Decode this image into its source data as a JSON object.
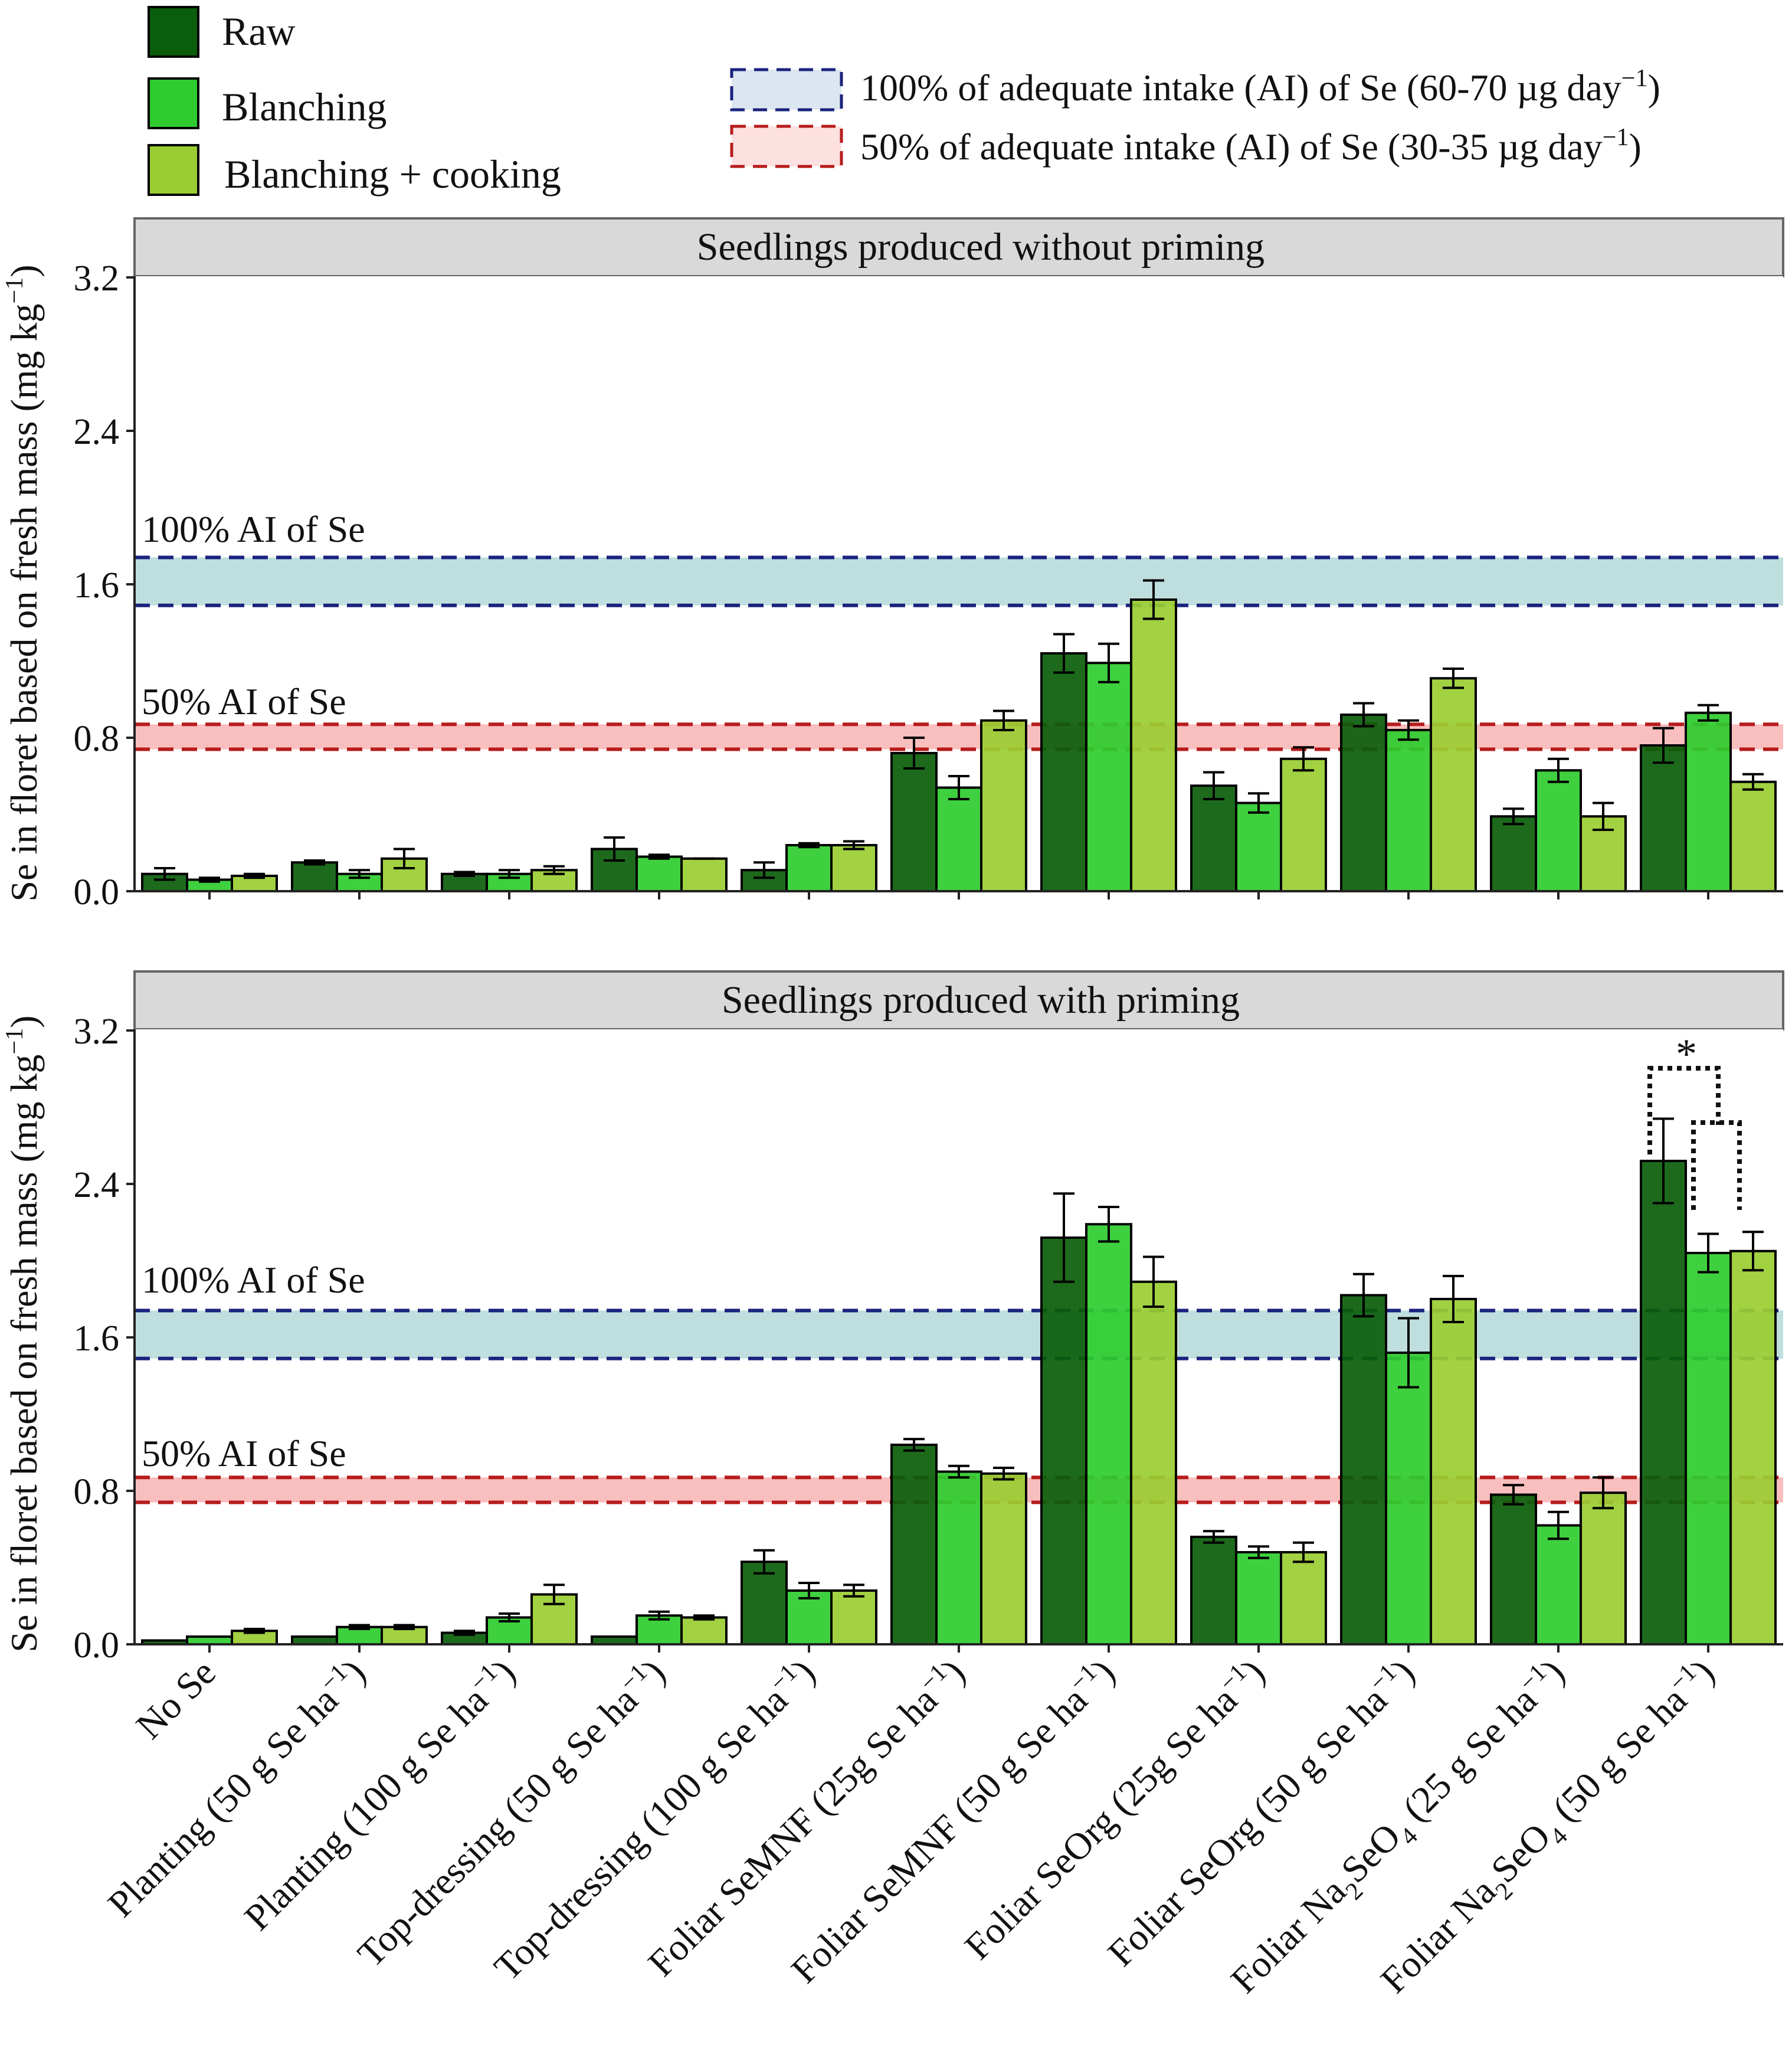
{
  "legend": {
    "series": [
      {
        "name": "Raw",
        "color": "#0a5d0a"
      },
      {
        "name": "Blanching",
        "color": "#2ecc2e"
      },
      {
        "name": "Blanching + cooking",
        "color": "#9acd32"
      }
    ],
    "bands": [
      {
        "label": "100% of adequate intake (AI) of Se (60-70 µg day",
        "exp": "−1",
        "close": ")",
        "fill": "#dbe6f0",
        "stroke": "#1a237e"
      },
      {
        "label": "50% of adequate intake (AI) of Se (30-35 µg day",
        "exp": "−1",
        "close": ")",
        "fill": "#fde0e0",
        "stroke": "#b71c1c"
      }
    ]
  },
  "axis": {
    "ylabel_main": "Se in floret based on fresh mass (mg kg",
    "ylabel_exp": "−1",
    "ylabel_close": ")",
    "yticks": [
      "0.0",
      "0.8",
      "1.6",
      "2.4",
      "3.2"
    ],
    "ytick_values": [
      0,
      0.8,
      1.6,
      2.4,
      3.2
    ]
  },
  "ref_labels": {
    "full": "100% AI of Se",
    "half": "50% AI of Se"
  },
  "significance": "*",
  "categories": [
    {
      "text": "No Se"
    },
    {
      "text": "Planting (50 g Se ha",
      "exp": "−1",
      "close": ")"
    },
    {
      "text": "Planting (100 g Se ha",
      "exp": "−1",
      "close": ")"
    },
    {
      "text": "Top-dressing (50 g Se ha",
      "exp": "−1",
      "close": ")"
    },
    {
      "text": "Top-dressing (100 g Se ha",
      "exp": "−1",
      "close": ")"
    },
    {
      "text": "Foliar SeMNF (25g Se ha",
      "exp": "−1",
      "close": ")"
    },
    {
      "text": "Foliar SeMNF (50 g Se ha",
      "exp": "−1",
      "close": ")"
    },
    {
      "text": "Foliar SeOrg (25g Se ha",
      "exp": "−1",
      "close": ")"
    },
    {
      "text": "Foliar SeOrg (50 g Se ha",
      "exp": "−1",
      "close": ")"
    },
    {
      "text": "Foliar Na",
      "sub": "2",
      "mid": "SeO",
      "sub2": "4",
      "tail": " (25 g Se ha",
      "exp": "−1",
      "close": ")"
    },
    {
      "text": "Foliar Na",
      "sub": "2",
      "mid": "SeO",
      "sub2": "4",
      "tail": " (50 g Se ha",
      "exp": "−1",
      "close": ")"
    }
  ],
  "chart_data": [
    {
      "type": "bar",
      "title": "Seedlings produced without priming",
      "ylabel": "Se in floret based on fresh mass (mg kg−1)",
      "ylim": [
        0,
        3.2
      ],
      "ref_bands": [
        {
          "name": "100% AI of Se",
          "range": [
            1.49,
            1.74
          ]
        },
        {
          "name": "50% AI of Se",
          "range": [
            0.74,
            0.87
          ]
        }
      ],
      "series": [
        {
          "name": "Raw",
          "values": [
            0.09,
            0.15,
            0.09,
            0.22,
            0.11,
            0.72,
            1.24,
            0.55,
            0.92,
            0.39,
            0.76
          ],
          "errors": [
            0.03,
            0.01,
            0.01,
            0.06,
            0.04,
            0.08,
            0.1,
            0.07,
            0.06,
            0.04,
            0.09
          ]
        },
        {
          "name": "Blanching",
          "values": [
            0.06,
            0.09,
            0.09,
            0.18,
            0.24,
            0.54,
            1.19,
            0.46,
            0.84,
            0.63,
            0.93
          ],
          "errors": [
            0.01,
            0.02,
            0.02,
            0.01,
            0.01,
            0.06,
            0.1,
            0.05,
            0.05,
            0.06,
            0.04
          ]
        },
        {
          "name": "Blanching + cooking",
          "values": [
            0.08,
            0.17,
            0.11,
            0.17,
            0.24,
            0.89,
            1.52,
            0.69,
            1.11,
            0.39,
            0.57
          ],
          "errors": [
            0.01,
            0.05,
            0.02,
            0.0,
            0.02,
            0.05,
            0.1,
            0.06,
            0.05,
            0.07,
            0.04
          ]
        }
      ]
    },
    {
      "type": "bar",
      "title": "Seedlings produced with priming",
      "ylabel": "Se in floret based on fresh mass (mg kg−1)",
      "ylim": [
        0,
        3.2
      ],
      "ref_bands": [
        {
          "name": "100% AI of Se",
          "range": [
            1.49,
            1.74
          ]
        },
        {
          "name": "50% AI of Se",
          "range": [
            0.74,
            0.87
          ]
        }
      ],
      "series": [
        {
          "name": "Raw",
          "values": [
            0.02,
            0.04,
            0.06,
            0.04,
            0.43,
            1.04,
            2.12,
            0.56,
            1.82,
            0.78,
            2.52
          ],
          "errors": [
            0.0,
            0.0,
            0.01,
            0.0,
            0.06,
            0.03,
            0.23,
            0.03,
            0.11,
            0.05,
            0.22
          ]
        },
        {
          "name": "Blanching",
          "values": [
            0.04,
            0.09,
            0.14,
            0.15,
            0.28,
            0.9,
            2.19,
            0.48,
            1.52,
            0.62,
            2.04
          ],
          "errors": [
            0.0,
            0.01,
            0.02,
            0.02,
            0.04,
            0.03,
            0.09,
            0.03,
            0.18,
            0.07,
            0.1
          ]
        },
        {
          "name": "Blanching + cooking",
          "values": [
            0.07,
            0.09,
            0.26,
            0.14,
            0.28,
            0.89,
            1.89,
            0.48,
            1.8,
            0.79,
            2.05
          ],
          "errors": [
            0.01,
            0.01,
            0.05,
            0.01,
            0.03,
            0.03,
            0.13,
            0.05,
            0.12,
            0.08,
            0.1
          ]
        }
      ]
    }
  ]
}
